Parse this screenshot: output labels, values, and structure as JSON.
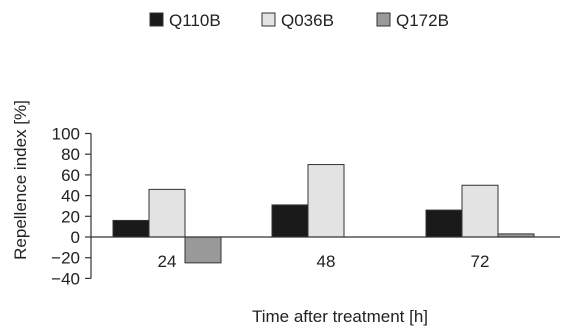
{
  "chart_data": {
    "type": "bar",
    "title": "",
    "xlabel": "Time after treatment [h]",
    "ylabel": "Repellence index [%]",
    "categories": [
      "24",
      "48",
      "72"
    ],
    "series": [
      {
        "name": "Q110B",
        "color": "#1a1a1a",
        "values": [
          16,
          31,
          26
        ]
      },
      {
        "name": "Q036B",
        "color": "#e3e3e3",
        "values": [
          46,
          70,
          50
        ]
      },
      {
        "name": "Q172B",
        "color": "#999999",
        "values": [
          -25,
          0,
          3
        ]
      }
    ],
    "ylim": [
      -40,
      100
    ],
    "yticks": [
      -40,
      -20,
      0,
      20,
      40,
      60,
      80,
      100
    ],
    "ytick_labels": [
      "−40",
      "−20",
      "0",
      "20",
      "40",
      "60",
      "80",
      "100"
    ],
    "grid": false,
    "legend": "top-center"
  }
}
